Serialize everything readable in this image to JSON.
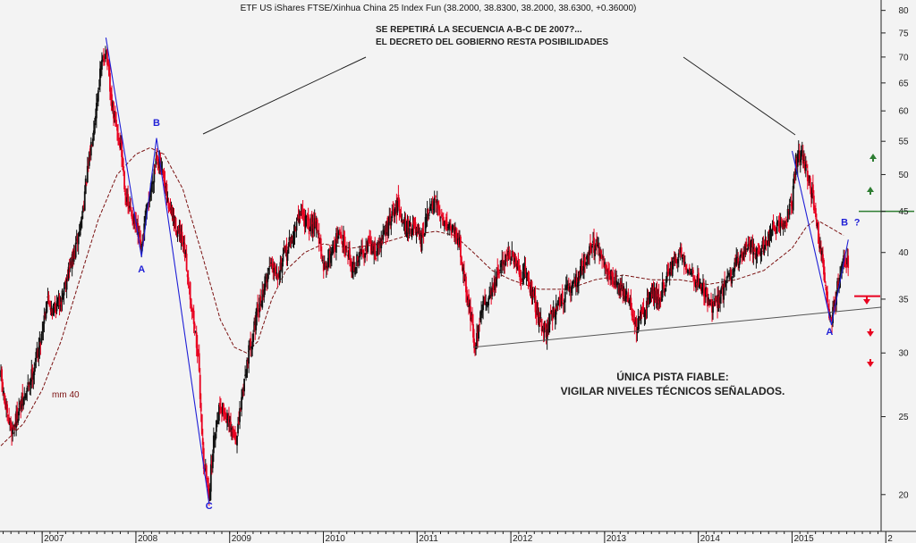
{
  "chart_data": {
    "type": "candlestick",
    "title": "ETF US iShares FTSE/Xinhua China 25 Index Fun (38.2000, 38.8300, 38.2000, 38.6300, +0.36000)",
    "y_scale": "log",
    "ylim": [
      18,
      82
    ],
    "yticks": [
      20,
      25,
      30,
      35,
      40,
      45,
      50,
      55,
      60,
      65,
      70,
      75,
      80
    ],
    "x_year_labels": [
      "2007",
      "2008",
      "2009",
      "2010",
      "2011",
      "2012",
      "2013",
      "2014",
      "2015",
      "2"
    ],
    "x_range": [
      2006.55,
      2015.95
    ],
    "price_path": [
      [
        2006.56,
        28
      ],
      [
        2006.62,
        25
      ],
      [
        2006.68,
        24
      ],
      [
        2006.75,
        25.5
      ],
      [
        2006.82,
        26.5
      ],
      [
        2006.9,
        28.5
      ],
      [
        2006.98,
        31
      ],
      [
        2007.05,
        35
      ],
      [
        2007.12,
        34
      ],
      [
        2007.2,
        35
      ],
      [
        2007.28,
        38
      ],
      [
        2007.35,
        40
      ],
      [
        2007.42,
        44
      ],
      [
        2007.5,
        52
      ],
      [
        2007.57,
        60
      ],
      [
        2007.62,
        67
      ],
      [
        2007.68,
        72
      ],
      [
        2007.73,
        62
      ],
      [
        2007.78,
        58
      ],
      [
        2007.84,
        54
      ],
      [
        2007.9,
        46
      ],
      [
        2007.98,
        44
      ],
      [
        2008.06,
        40
      ],
      [
        2008.1,
        44
      ],
      [
        2008.16,
        48
      ],
      [
        2008.22,
        53
      ],
      [
        2008.28,
        50
      ],
      [
        2008.34,
        46
      ],
      [
        2008.4,
        44
      ],
      [
        2008.46,
        42
      ],
      [
        2008.52,
        40
      ],
      [
        2008.6,
        34
      ],
      [
        2008.66,
        30
      ],
      [
        2008.72,
        22
      ],
      [
        2008.78,
        20
      ],
      [
        2008.84,
        24
      ],
      [
        2008.9,
        26
      ],
      [
        2008.96,
        25
      ],
      [
        2009.02,
        24
      ],
      [
        2009.08,
        23.5
      ],
      [
        2009.14,
        27
      ],
      [
        2009.2,
        30
      ],
      [
        2009.28,
        33
      ],
      [
        2009.36,
        36
      ],
      [
        2009.44,
        39
      ],
      [
        2009.52,
        38
      ],
      [
        2009.6,
        40
      ],
      [
        2009.68,
        42
      ],
      [
        2009.76,
        45
      ],
      [
        2009.84,
        43
      ],
      [
        2009.92,
        44
      ],
      [
        2010.0,
        38
      ],
      [
        2010.08,
        40
      ],
      [
        2010.16,
        42
      ],
      [
        2010.24,
        41
      ],
      [
        2010.32,
        38
      ],
      [
        2010.4,
        40
      ],
      [
        2010.48,
        41
      ],
      [
        2010.56,
        40
      ],
      [
        2010.64,
        42
      ],
      [
        2010.72,
        44
      ],
      [
        2010.8,
        46
      ],
      [
        2010.88,
        43
      ],
      [
        2010.96,
        43
      ],
      [
        2011.04,
        41
      ],
      [
        2011.12,
        45
      ],
      [
        2011.2,
        46
      ],
      [
        2011.28,
        44
      ],
      [
        2011.36,
        43
      ],
      [
        2011.44,
        42
      ],
      [
        2011.52,
        36
      ],
      [
        2011.58,
        33
      ],
      [
        2011.62,
        30
      ],
      [
        2011.68,
        34
      ],
      [
        2011.74,
        35
      ],
      [
        2011.8,
        36
      ],
      [
        2011.88,
        38
      ],
      [
        2011.96,
        40
      ],
      [
        2012.04,
        39
      ],
      [
        2012.1,
        37
      ],
      [
        2012.16,
        38
      ],
      [
        2012.24,
        35
      ],
      [
        2012.3,
        33
      ],
      [
        2012.38,
        32
      ],
      [
        2012.46,
        34
      ],
      [
        2012.54,
        35
      ],
      [
        2012.62,
        36
      ],
      [
        2012.7,
        37
      ],
      [
        2012.78,
        39
      ],
      [
        2012.86,
        41
      ],
      [
        2012.94,
        40
      ],
      [
        2013.02,
        38
      ],
      [
        2013.1,
        37
      ],
      [
        2013.18,
        36
      ],
      [
        2013.26,
        35
      ],
      [
        2013.34,
        32
      ],
      [
        2013.42,
        34
      ],
      [
        2013.5,
        36
      ],
      [
        2013.58,
        35
      ],
      [
        2013.66,
        37
      ],
      [
        2013.74,
        39
      ],
      [
        2013.82,
        40
      ],
      [
        2013.9,
        38
      ],
      [
        2013.98,
        37
      ],
      [
        2014.06,
        36
      ],
      [
        2014.14,
        34
      ],
      [
        2014.22,
        35
      ],
      [
        2014.3,
        37
      ],
      [
        2014.38,
        38
      ],
      [
        2014.46,
        40
      ],
      [
        2014.54,
        41
      ],
      [
        2014.62,
        40
      ],
      [
        2014.7,
        41
      ],
      [
        2014.78,
        42
      ],
      [
        2014.86,
        43
      ],
      [
        2014.94,
        44
      ],
      [
        2015.0,
        46
      ],
      [
        2015.04,
        52
      ],
      [
        2015.1,
        53
      ],
      [
        2015.16,
        50
      ],
      [
        2015.22,
        47
      ],
      [
        2015.28,
        42
      ],
      [
        2015.34,
        38
      ],
      [
        2015.38,
        34
      ],
      [
        2015.42,
        33
      ],
      [
        2015.46,
        35
      ],
      [
        2015.5,
        37
      ],
      [
        2015.55,
        39
      ],
      [
        2015.6,
        38.6
      ]
    ],
    "moving_average_path": [
      [
        2006.56,
        23
      ],
      [
        2006.8,
        24.5
      ],
      [
        2007.0,
        27
      ],
      [
        2007.2,
        31
      ],
      [
        2007.4,
        37
      ],
      [
        2007.6,
        44
      ],
      [
        2007.8,
        50
      ],
      [
        2008.0,
        53
      ],
      [
        2008.15,
        54
      ],
      [
        2008.3,
        53
      ],
      [
        2008.5,
        48
      ],
      [
        2008.7,
        40
      ],
      [
        2008.9,
        33
      ],
      [
        2009.05,
        30.5
      ],
      [
        2009.18,
        30
      ],
      [
        2009.3,
        31
      ],
      [
        2009.45,
        35
      ],
      [
        2009.6,
        38
      ],
      [
        2009.8,
        40
      ],
      [
        2010.0,
        41
      ],
      [
        2010.3,
        40.5
      ],
      [
        2010.6,
        41
      ],
      [
        2010.9,
        42
      ],
      [
        2011.2,
        42.5
      ],
      [
        2011.4,
        42
      ],
      [
        2011.6,
        40
      ],
      [
        2011.8,
        38
      ],
      [
        2012.0,
        37
      ],
      [
        2012.3,
        36
      ],
      [
        2012.6,
        36
      ],
      [
        2012.9,
        37
      ],
      [
        2013.2,
        37.5
      ],
      [
        2013.5,
        37
      ],
      [
        2013.8,
        37
      ],
      [
        2014.1,
        36.5
      ],
      [
        2014.4,
        37
      ],
      [
        2014.7,
        38
      ],
      [
        2015.0,
        40.5
      ],
      [
        2015.15,
        43
      ],
      [
        2015.25,
        44
      ],
      [
        2015.4,
        43
      ],
      [
        2015.55,
        42
      ]
    ],
    "trendline": [
      [
        2011.6,
        30.5
      ],
      [
        2015.95,
        34.2
      ]
    ],
    "abc_lines": [
      [
        [
          2007.68,
          74
        ],
        [
          2008.06,
          39.5
        ],
        [
          2008.22,
          55.5
        ],
        [
          2008.78,
          19.5
        ]
      ],
      [
        [
          2015.0,
          53.5
        ],
        [
          2015.42,
          32.5
        ],
        [
          2015.6,
          41.5
        ]
      ]
    ],
    "support_resistance": {
      "green_level": 45,
      "red_level": 35.3,
      "green_color": "#2e7d32",
      "red_color": "#e8001f"
    },
    "moving_average_label": "mm 40",
    "wave_labels": {
      "first": {
        "a": "A",
        "b": "B",
        "c": "C",
        "a_value": 37.8,
        "b_value": 57.5,
        "c_value": 19.2
      },
      "second": {
        "a": "A",
        "b": "B",
        "q": "?",
        "a_value": 31.6,
        "b_value": 43.2
      }
    },
    "annotations": {
      "top_line1": "SE REPETIRÁ LA SECUENCIA A-B-C DE 2007?...",
      "top_line2": "EL DECRETO DEL GOBIERNO RESTA POSIBILIDADES",
      "bottom_line1": "ÚNICA PISTA FIABLE:",
      "bottom_line2": "VIGILAR NIVELES TÉCNICOS SEÑALADOS."
    },
    "colors": {
      "up_candle": "#111111",
      "down_candle": "#e8001f",
      "moving_average": "#7a1010",
      "abc_line": "#1f1fd6",
      "wave_label": "#1f1fd6",
      "trendline": "#555555",
      "annotation_line": "#222222",
      "background": "#f3f3f3"
    },
    "grid": false
  }
}
